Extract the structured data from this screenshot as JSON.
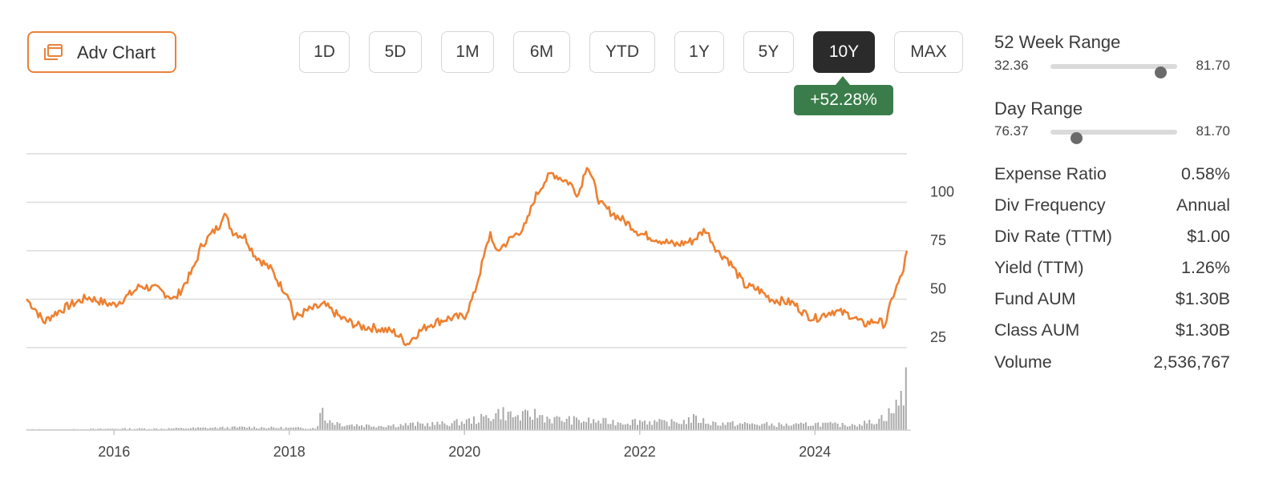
{
  "toolbar": {
    "adv_chart_label": "Adv Chart",
    "ranges": [
      "1D",
      "5D",
      "1M",
      "6M",
      "YTD",
      "1Y",
      "5Y",
      "10Y",
      "MAX"
    ],
    "active_range": "10Y",
    "change_badge": "+52.28%",
    "accent_color": "#e8823a",
    "badge_color": "#3a7d4a"
  },
  "side": {
    "week52": {
      "title": "52 Week Range",
      "low": "32.36",
      "high": "81.70",
      "position": 0.87
    },
    "day": {
      "title": "Day Range",
      "low": "76.37",
      "high": "81.70",
      "position": 0.2
    },
    "stats": [
      {
        "label": "Expense Ratio",
        "value": "0.58%"
      },
      {
        "label": "Div Frequency",
        "value": "Annual"
      },
      {
        "label": "Div Rate (TTM)",
        "value": "$1.00"
      },
      {
        "label": "Yield (TTM)",
        "value": "1.26%"
      },
      {
        "label": "Fund AUM",
        "value": "$1.30B"
      },
      {
        "label": "Class AUM",
        "value": "$1.30B"
      },
      {
        "label": "Volume",
        "value": "2,536,767"
      }
    ]
  },
  "chart_data": {
    "type": "line",
    "line_color": "#ee8030",
    "volume_color": "#a9a9a9",
    "y_ticks": [
      25,
      50,
      75,
      100
    ],
    "y_range": [
      25,
      125
    ],
    "x_ticks": [
      "2016",
      "2018",
      "2020",
      "2022",
      "2024"
    ],
    "x_range": [
      2015.0,
      2025.05
    ],
    "price_series": {
      "x": [
        2015.0,
        2015.1,
        2015.2,
        2015.3,
        2015.5,
        2015.7,
        2015.9,
        2016.0,
        2016.2,
        2016.3,
        2016.5,
        2016.7,
        2016.9,
        2017.0,
        2017.1,
        2017.2,
        2017.25,
        2017.35,
        2017.5,
        2017.6,
        2017.8,
        2017.9,
        2018.0,
        2018.05,
        2018.2,
        2018.4,
        2018.6,
        2018.8,
        2019.0,
        2019.2,
        2019.35,
        2019.45,
        2019.6,
        2019.8,
        2020.0,
        2020.1,
        2020.2,
        2020.3,
        2020.35,
        2020.5,
        2020.7,
        2020.8,
        2020.9,
        2021.0,
        2021.2,
        2021.3,
        2021.4,
        2021.55,
        2021.7,
        2021.9,
        2022.0,
        2022.2,
        2022.4,
        2022.6,
        2022.75,
        2022.9,
        2023.0,
        2023.2,
        2023.35,
        2023.5,
        2023.75,
        2023.9,
        2024.0,
        2024.2,
        2024.4,
        2024.55,
        2024.7,
        2024.8,
        2024.9,
        2025.0,
        2025.05
      ],
      "y": [
        50,
        45,
        38,
        42,
        47,
        51,
        48,
        47,
        53,
        57,
        55,
        50,
        65,
        78,
        83,
        88,
        95,
        85,
        82,
        73,
        65,
        57,
        52,
        40,
        44,
        47,
        40,
        36,
        35,
        33,
        27,
        32,
        37,
        40,
        41,
        51,
        68,
        85,
        74,
        80,
        88,
        102,
        110,
        115,
        110,
        104,
        120,
        99,
        94,
        88,
        84,
        81,
        78,
        80,
        86,
        74,
        71,
        57,
        55,
        50,
        48,
        42,
        40,
        44,
        42,
        37,
        39,
        37,
        53,
        63,
        75
      ]
    },
    "volume_series": {
      "x": [
        2015.0,
        2015.5,
        2016.0,
        2016.5,
        2017.0,
        2017.5,
        2018.0,
        2018.3,
        2018.38,
        2018.4,
        2018.6,
        2019.0,
        2019.4,
        2019.8,
        2020.0,
        2020.2,
        2020.3,
        2020.4,
        2020.6,
        2020.8,
        2021.0,
        2021.2,
        2021.5,
        2021.8,
        2022.0,
        2022.3,
        2022.5,
        2022.6,
        2022.8,
        2023.0,
        2023.4,
        2023.8,
        2024.0,
        2024.3,
        2024.6,
        2024.7,
        2024.8,
        2024.9,
        2025.0,
        2025.03
      ],
      "y": [
        0.01,
        0.01,
        0.02,
        0.02,
        0.03,
        0.04,
        0.03,
        0.03,
        0.33,
        0.15,
        0.08,
        0.06,
        0.08,
        0.09,
        0.12,
        0.16,
        0.2,
        0.25,
        0.18,
        0.22,
        0.15,
        0.14,
        0.12,
        0.11,
        0.13,
        0.1,
        0.12,
        0.16,
        0.1,
        0.09,
        0.08,
        0.07,
        0.09,
        0.07,
        0.1,
        0.14,
        0.2,
        0.28,
        0.5,
        0.95
      ]
    }
  }
}
